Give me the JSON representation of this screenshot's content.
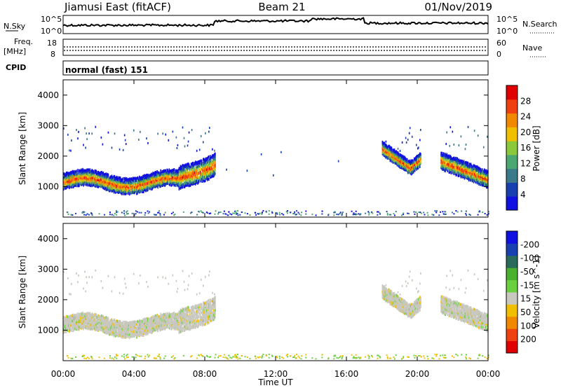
{
  "header": {
    "title": "Jiamusi East (fitACF)",
    "beam": "Beam 21",
    "date": "01/Nov/2019"
  },
  "nsky_panel": {
    "left_label": "N.Sky",
    "right_label": "N.Search",
    "left_top_tick": "10^5",
    "left_bottom_tick": "10^0",
    "right_top_tick": "10^5",
    "right_bottom_tick": "10^0"
  },
  "freq_panel": {
    "left_label_1": "Freq.",
    "left_label_2": "[MHz]",
    "right_label": "Nave",
    "left_ticks": [
      "18",
      "8"
    ],
    "right_ticks": [
      "60",
      "0"
    ]
  },
  "cpid": {
    "label": "CPID",
    "value": "normal (fast) 151"
  },
  "x_axis": {
    "label": "Time UT",
    "ticks": [
      "00:00",
      "04:00",
      "08:00",
      "12:00",
      "16:00",
      "20:00",
      "00:00"
    ]
  },
  "colors": {
    "power_scale": [
      "#1010e0",
      "#1840b0",
      "#3a7a8a",
      "#4aa870",
      "#8cc83c",
      "#f0c000",
      "#f08800",
      "#f04010",
      "#e00000"
    ],
    "velocity_scale": [
      "#1010e0",
      "#1840b0",
      "#2a6a5a",
      "#4ab030",
      "#6ad040",
      "#c8c8c0",
      "#f0c000",
      "#f08800",
      "#f04010",
      "#e00000"
    ]
  },
  "chart_data": [
    {
      "type": "heatmap",
      "name": "power",
      "ylabel": "Slant Range [km]",
      "xlabel": "Time UT",
      "x_range_hours": [
        0,
        24
      ],
      "ylim": [
        0,
        4500
      ],
      "yticks": [
        "1000",
        "2000",
        "3000",
        "4000"
      ],
      "colorbar": {
        "label": "Power [dB]",
        "ticks": [
          "4",
          "8",
          "12",
          "16",
          "20",
          "24",
          "28"
        ],
        "range": [
          0,
          32
        ]
      },
      "regions": [
        {
          "t0": 0.0,
          "t1": 8.6,
          "profile": "band_main",
          "intensity": "high"
        },
        {
          "t0": 18.0,
          "t1": 20.2,
          "profile": "band_rise",
          "intensity": "high"
        },
        {
          "t0": 21.3,
          "t1": 24.0,
          "profile": "band_dip",
          "intensity": "high"
        }
      ]
    },
    {
      "type": "heatmap",
      "name": "velocity",
      "ylabel": "Slant Range [km]",
      "xlabel": "Time UT",
      "x_range_hours": [
        0,
        24
      ],
      "ylim": [
        0,
        4500
      ],
      "yticks": [
        "1000",
        "2000",
        "3000",
        "4000"
      ],
      "colorbar": {
        "label": "Velocity [m s^-1]",
        "ticks": [
          "200",
          "100",
          "50",
          "15",
          "-15",
          "-50",
          "-100",
          "-200"
        ],
        "range": [
          -250,
          250
        ]
      }
    }
  ]
}
